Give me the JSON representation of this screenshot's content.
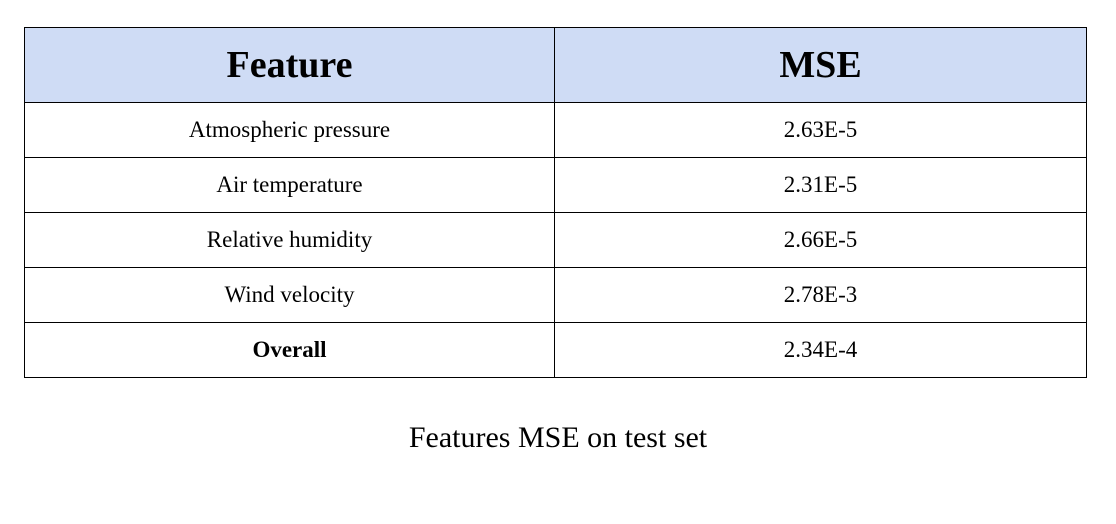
{
  "table": {
    "headers": [
      "Feature",
      "MSE"
    ],
    "rows": [
      {
        "feature": "Atmospheric pressure",
        "mse": "2.63E-5",
        "bold": false
      },
      {
        "feature": "Air temperature",
        "mse": "2.31E-5",
        "bold": false
      },
      {
        "feature": "Relative humidity",
        "mse": "2.66E-5",
        "bold": false
      },
      {
        "feature": "Wind velocity",
        "mse": "2.78E-3",
        "bold": false
      },
      {
        "feature": "Overall",
        "mse": "2.34E-4",
        "bold": true
      }
    ],
    "header_background": "#cfdcf5"
  },
  "caption": "Features MSE on test set"
}
